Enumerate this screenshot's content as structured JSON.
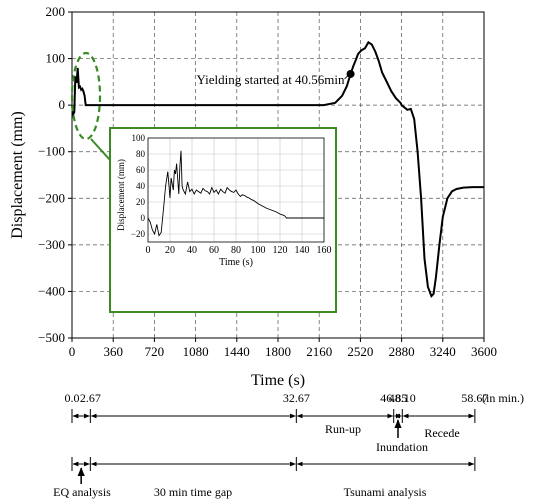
{
  "chart_data": [
    {
      "type": "line",
      "xlabel": "Time (s)",
      "ylabel": "Displacement (mm)",
      "xlim": [
        0,
        3600
      ],
      "ylim": [
        -500,
        200
      ],
      "xticks": [
        0,
        360,
        720,
        1080,
        1440,
        1800,
        2160,
        2520,
        2880,
        3240,
        3600
      ],
      "yticks": [
        -500,
        -400,
        -300,
        -200,
        -100,
        0,
        100,
        200
      ],
      "grid": "dashed",
      "series": [
        {
          "x": [
            0,
            10,
            20,
            25,
            30,
            40,
            50,
            60,
            70,
            80,
            90,
            100,
            110,
            120,
            130,
            160,
            400,
            1000,
            1800,
            2200,
            2300,
            2360,
            2400,
            2434,
            2460,
            2480,
            2500,
            2530,
            2560,
            2590,
            2620,
            2650,
            2680,
            2710,
            2740,
            2760,
            2790,
            2830,
            2870,
            2880,
            2930,
            2960,
            2990,
            3020,
            3050,
            3080,
            3110,
            3140,
            3160,
            3180,
            3210,
            3240,
            3280,
            3320,
            3360,
            3420,
            3500,
            3600
          ],
          "y": [
            0,
            -20,
            -15,
            30,
            62,
            48,
            80,
            38,
            40,
            33,
            35,
            30,
            20,
            0,
            0,
            0,
            0,
            0,
            0,
            0,
            5,
            20,
            40,
            67,
            85,
            97,
            110,
            118,
            122,
            135,
            130,
            115,
            95,
            70,
            55,
            45,
            30,
            15,
            5,
            0,
            -10,
            -8,
            -30,
            -100,
            -200,
            -330,
            -390,
            -410,
            -405,
            -370,
            -300,
            -240,
            -200,
            -185,
            -180,
            -177,
            -176,
            -176
          ]
        }
      ],
      "annotations": [
        {
          "text": "Yielding started at 40.56min",
          "x": 2434,
          "y": 67
        }
      ]
    },
    {
      "type": "line",
      "xlabel": "Time (s)",
      "ylabel": "Displacement (mm)",
      "xlim": [
        0,
        160
      ],
      "ylim": [
        -30,
        100
      ],
      "xticks": [
        0,
        20,
        40,
        60,
        80,
        100,
        120,
        140,
        160
      ],
      "yticks": [
        -20,
        0,
        20,
        40,
        60,
        80,
        100
      ],
      "grid": "solid",
      "series": [
        {
          "x": [
            0,
            2,
            4,
            6,
            8,
            10,
            12,
            14,
            16,
            18,
            20,
            21,
            23,
            24,
            25,
            26,
            28,
            29,
            30,
            31,
            32,
            34,
            36,
            38,
            40,
            42,
            44,
            46,
            48,
            50,
            52,
            54,
            56,
            58,
            60,
            62,
            64,
            66,
            68,
            70,
            72,
            74,
            76,
            78,
            80,
            82,
            84,
            86,
            88,
            90,
            92,
            94,
            96,
            98,
            100,
            104,
            108,
            112,
            116,
            120,
            122,
            124,
            126,
            130,
            140,
            150,
            160
          ],
          "y": [
            0,
            -5,
            -15,
            -20,
            -8,
            -22,
            -18,
            10,
            40,
            58,
            25,
            50,
            35,
            60,
            55,
            68,
            30,
            65,
            84,
            40,
            35,
            30,
            45,
            33,
            36,
            30,
            35,
            33,
            31,
            37,
            34,
            33,
            30,
            38,
            32,
            35,
            30,
            36,
            33,
            31,
            38,
            35,
            33,
            32,
            35,
            30,
            27,
            29,
            28,
            26,
            25,
            23,
            22,
            20,
            18,
            15,
            12,
            10,
            8,
            5,
            4,
            3,
            0,
            0,
            0,
            0,
            0
          ]
        }
      ]
    }
  ],
  "timeline": {
    "unit_label": "(in min.)",
    "markers": [
      {
        "label": "0.0",
        "minute": 0
      },
      {
        "label": "2.67",
        "minute": 2.67
      },
      {
        "label": "32.67",
        "minute": 32.67
      },
      {
        "label": "46.85",
        "minute": 46.85
      },
      {
        "label": "48.10",
        "minute": 48.1
      },
      {
        "label": "58.67",
        "minute": 58.67
      }
    ],
    "phases": {
      "runup": "Run-up",
      "inundation": "Inundation",
      "recede": "Recede"
    },
    "analyses": {
      "eq": "EQ analysis",
      "gap": "30 min time gap",
      "tsunami": "Tsunami analysis"
    }
  },
  "colors": {
    "line": "#000000",
    "grid": "#555555",
    "highlight": "#3b8a24"
  }
}
